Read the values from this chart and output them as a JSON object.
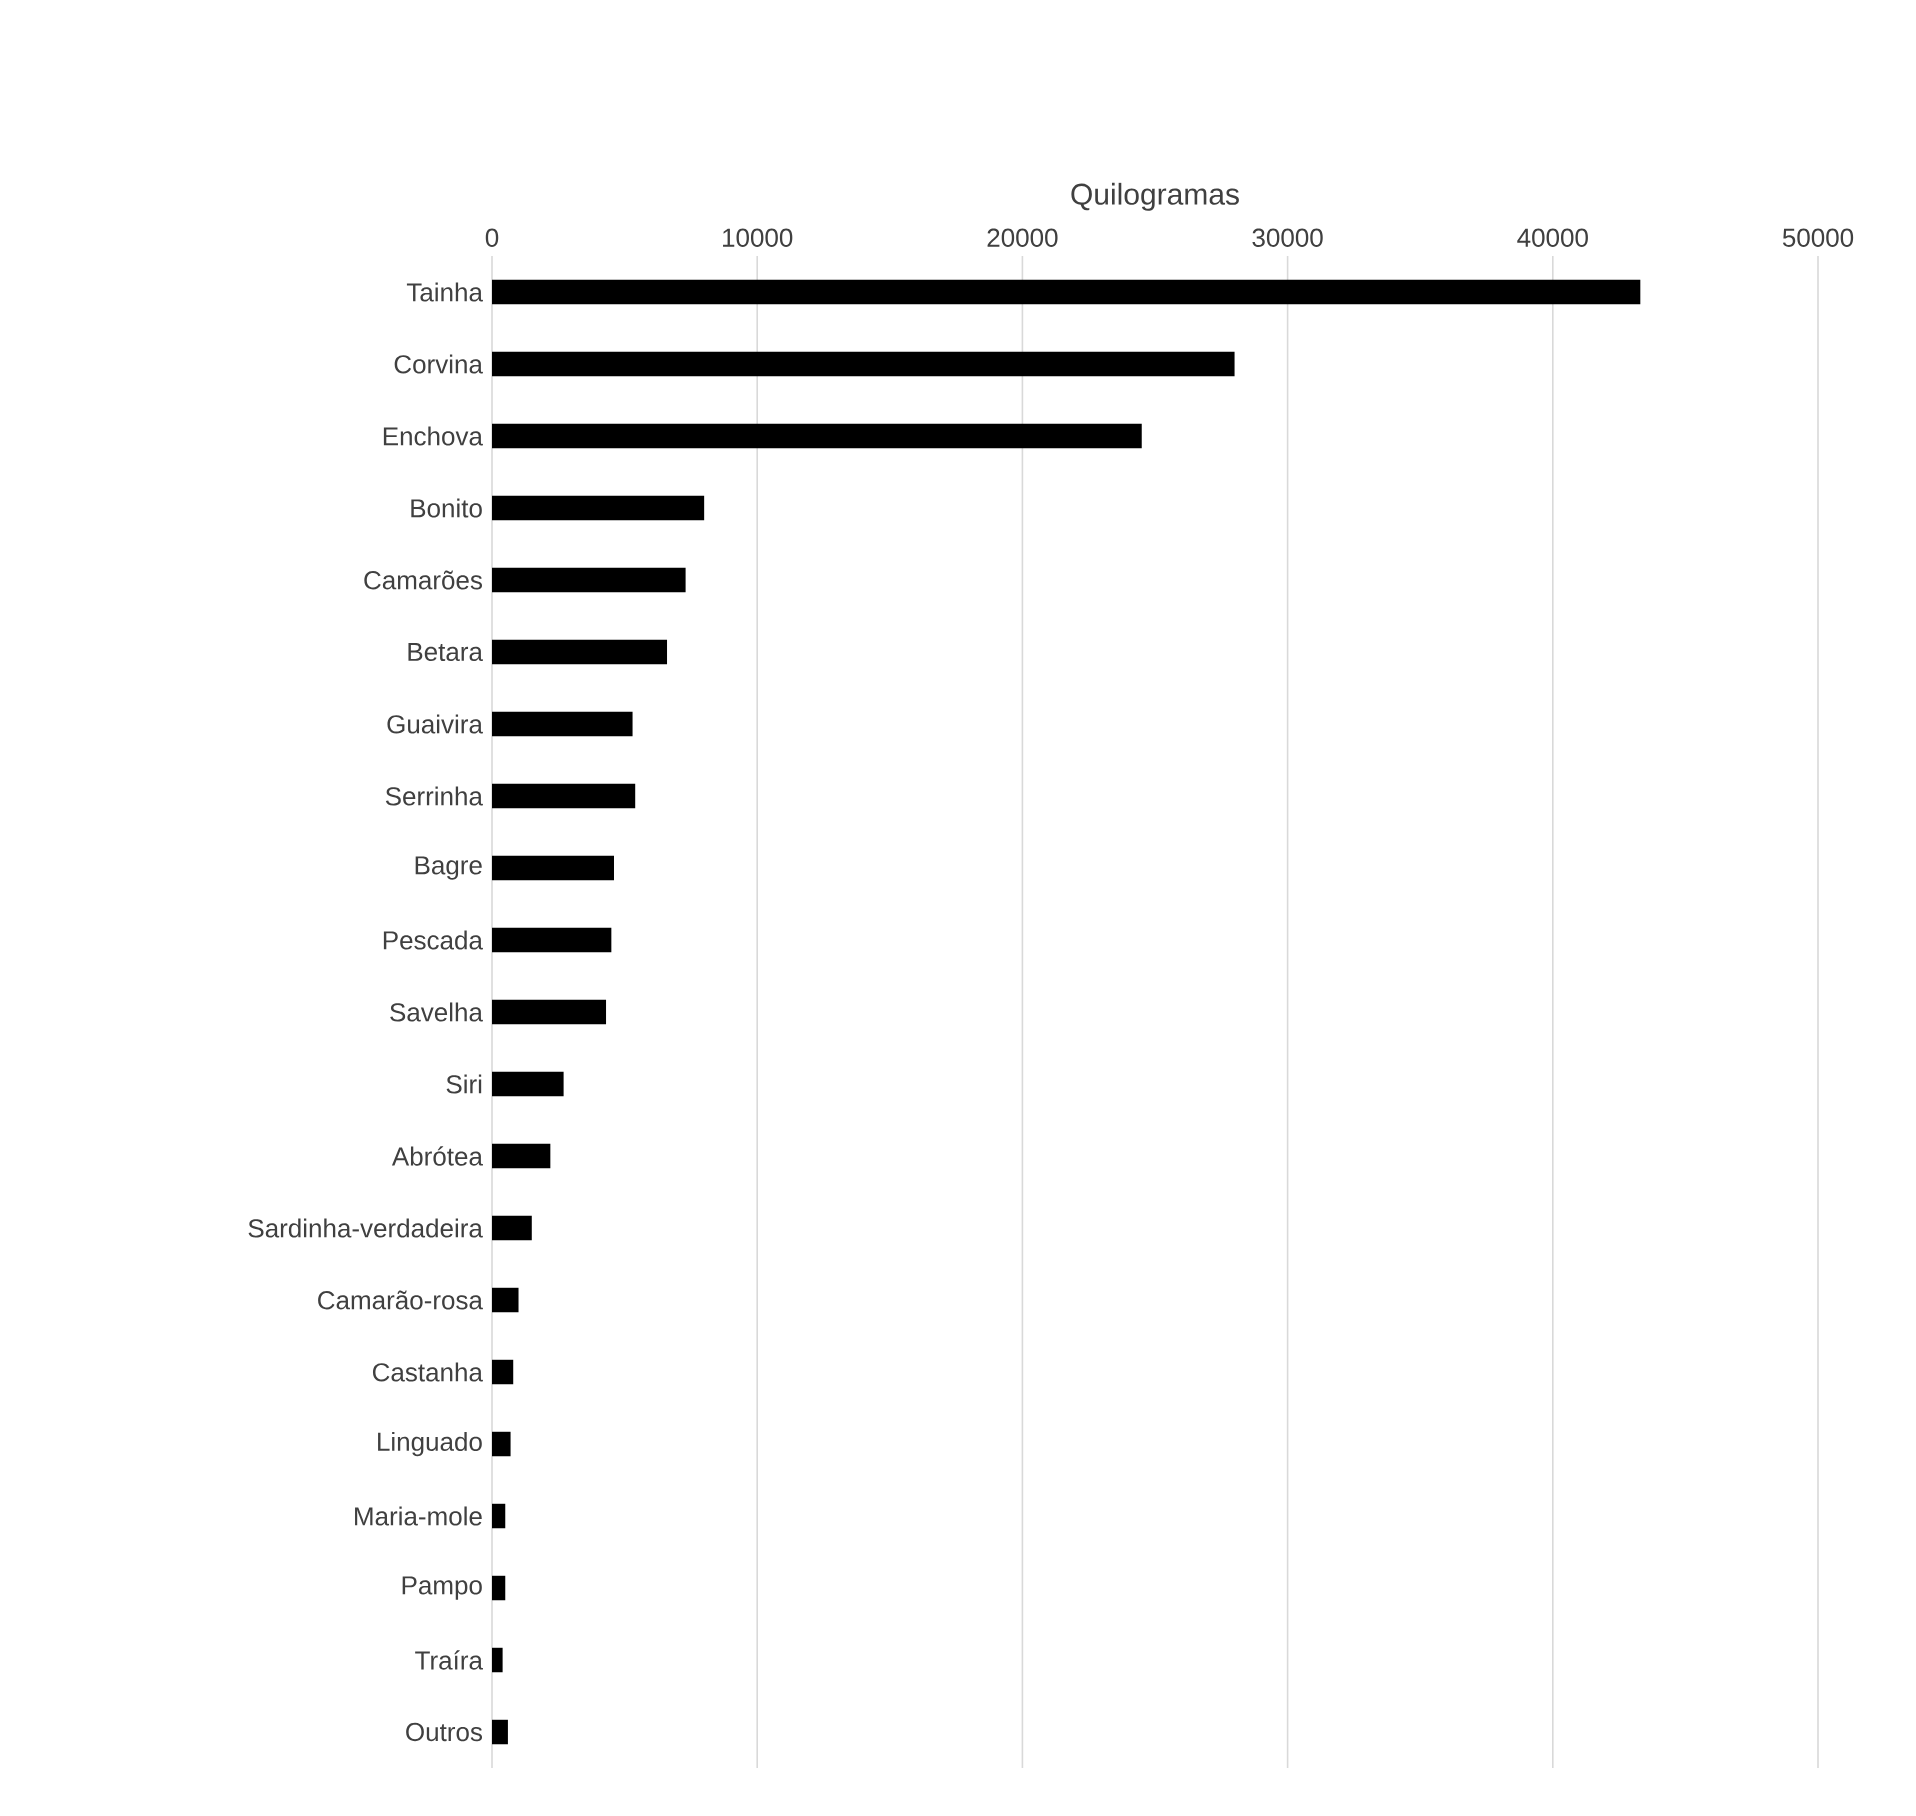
{
  "chart_data": {
    "type": "bar",
    "orientation": "horizontal",
    "xlabel": "Quilogramas",
    "categories": [
      "Tainha",
      "Corvina",
      "Enchova",
      "Bonito",
      "Camarões",
      "Betara",
      "Guaivira",
      "Serrinha",
      "Bagre",
      "Pescada",
      "Savelha",
      "Siri",
      "Abrótea",
      "Sardinha-verdadeira",
      "Camarão-rosa",
      "Castanha",
      "Linguado",
      "Maria-mole",
      "Pampo",
      "Traíra",
      "Outros"
    ],
    "values": [
      43300,
      28000,
      24500,
      8000,
      7300,
      6600,
      5300,
      5400,
      4600,
      4500,
      4300,
      2700,
      2200,
      1500,
      1000,
      800,
      700,
      500,
      500,
      400,
      600
    ],
    "color": "#000000",
    "xlim": [
      0,
      50000
    ],
    "xticks": [
      0,
      10000,
      20000,
      30000,
      40000,
      50000
    ],
    "grid": "x",
    "legend": false
  }
}
